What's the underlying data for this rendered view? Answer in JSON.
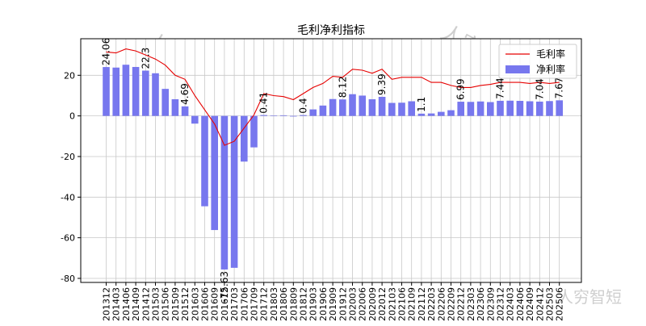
{
  "chart_data": {
    "type": "bar",
    "title": "毛利净利指标",
    "xlabel": "",
    "ylabel": "",
    "ylim": [
      -82,
      38
    ],
    "yticks": [
      20,
      0,
      -20,
      -40,
      -60,
      -80
    ],
    "grid": true,
    "legend_position": "top-right",
    "watermark": "人穷智短",
    "categories": [
      "201312",
      "201403",
      "201406",
      "201409",
      "201412",
      "201503",
      "201506",
      "201509",
      "201512",
      "201603",
      "201606",
      "201609",
      "201612",
      "201703",
      "201706",
      "201709",
      "201712",
      "201803",
      "201806",
      "201809",
      "201812",
      "201903",
      "201906",
      "201909",
      "201912",
      "202003",
      "202006",
      "202009",
      "202012",
      "202103",
      "202106",
      "202109",
      "202112",
      "202203",
      "202206",
      "202209",
      "202212",
      "202303",
      "202306",
      "202309",
      "202312",
      "202403",
      "202406",
      "202409",
      "202412",
      "202503",
      "202506"
    ],
    "series": [
      {
        "name": "毛利率",
        "kind": "line",
        "color": "#e60000",
        "values": [
          31.5,
          31,
          33,
          32,
          30,
          28,
          25,
          20,
          18,
          10,
          3,
          -4,
          -14.5,
          -12.5,
          -6,
          0.5,
          11,
          10,
          9.5,
          8,
          11,
          14,
          16,
          19.5,
          19,
          23,
          22.5,
          21,
          23,
          18,
          19,
          19,
          19,
          16.5,
          16.5,
          15,
          14,
          14,
          15,
          15.5,
          16.5,
          16.5,
          16.5,
          16,
          16.5,
          16,
          16.5
        ]
      },
      {
        "name": "净利率",
        "kind": "bar",
        "color": "#7777ee",
        "values": [
          24.06,
          23.8,
          25.2,
          24.1,
          22.3,
          21,
          13.3,
          8.2,
          4.69,
          -3.8,
          -44.5,
          -56.2,
          -75.63,
          -74.8,
          -22.5,
          -15.5,
          0.41,
          0.2,
          0.3,
          -0.3,
          0.4,
          3.2,
          5.1,
          8.3,
          8.12,
          10.7,
          10,
          8.2,
          9.39,
          6.4,
          6.5,
          7.2,
          1.1,
          1.2,
          2,
          2.8,
          6.99,
          6.9,
          7.1,
          6.8,
          7.44,
          7.5,
          7.4,
          7.2,
          7.04,
          7.3,
          7.67
        ]
      }
    ],
    "bar_labels": [
      {
        "index": 0,
        "text": "24.06"
      },
      {
        "index": 4,
        "text": "22.3"
      },
      {
        "index": 8,
        "text": "4.69"
      },
      {
        "index": 12,
        "text": "-75.63"
      },
      {
        "index": 16,
        "text": "0.41"
      },
      {
        "index": 20,
        "text": "0.4"
      },
      {
        "index": 24,
        "text": "8.12"
      },
      {
        "index": 28,
        "text": "9.39"
      },
      {
        "index": 32,
        "text": "1.1"
      },
      {
        "index": 36,
        "text": "6.99"
      },
      {
        "index": 40,
        "text": "7.44"
      },
      {
        "index": 44,
        "text": "7.04"
      },
      {
        "index": 46,
        "text": "7.67"
      }
    ]
  }
}
